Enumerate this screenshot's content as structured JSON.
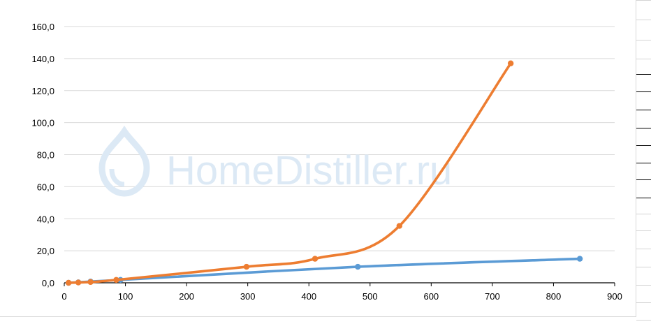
{
  "chart_data": {
    "type": "line",
    "title": "",
    "xlabel": "",
    "ylabel": "",
    "xlim": [
      0,
      900
    ],
    "ylim": [
      0,
      160
    ],
    "x_ticks": [
      0,
      100,
      200,
      300,
      400,
      500,
      600,
      700,
      800,
      900
    ],
    "x_tick_labels": [
      "0",
      "100",
      "200",
      "300",
      "400",
      "500",
      "600",
      "700",
      "800",
      "900"
    ],
    "y_ticks": [
      0,
      20,
      40,
      60,
      80,
      100,
      120,
      140,
      160
    ],
    "y_tick_labels": [
      "0,0",
      "20,0",
      "40,0",
      "60,0",
      "80,0",
      "100,0",
      "120,0",
      "140,0",
      "160,0"
    ],
    "grid": true,
    "legend": "none",
    "smooth": true,
    "series": [
      {
        "color": "#5b9bd5",
        "points": [
          [
            7,
            0
          ],
          [
            23,
            0.3
          ],
          [
            43,
            0.8
          ],
          [
            92,
            1.8
          ],
          [
            480,
            10.0
          ],
          [
            843,
            15.0
          ]
        ]
      },
      {
        "color": "#ed7d31",
        "points": [
          [
            7,
            0
          ],
          [
            23,
            0.2
          ],
          [
            43,
            0.5
          ],
          [
            85,
            1.8
          ],
          [
            298,
            10.0
          ],
          [
            410,
            15.0
          ],
          [
            548,
            35.5
          ],
          [
            730,
            137.0
          ]
        ]
      }
    ]
  },
  "watermark": {
    "text": "HomeDistiller.ru",
    "icon": "droplet-icon",
    "color": "#dce9f5"
  }
}
